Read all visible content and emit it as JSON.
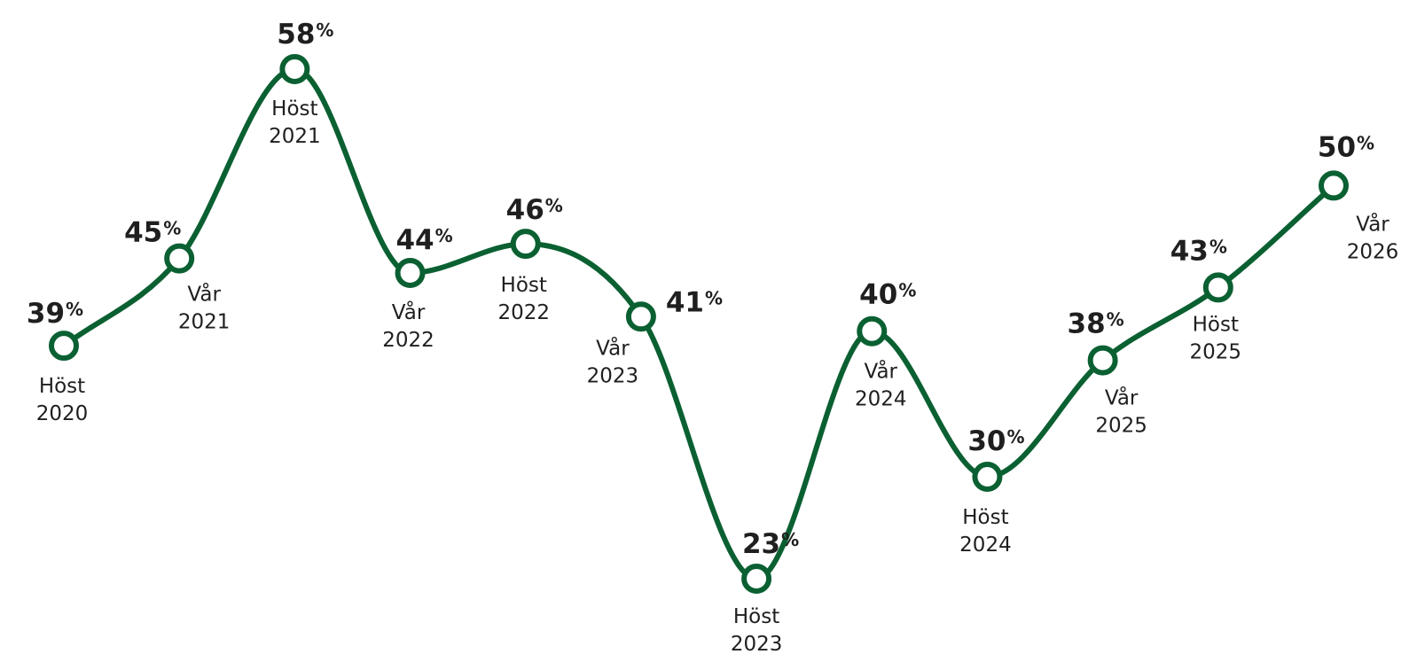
{
  "chart_data": {
    "type": "line",
    "title": "",
    "xlabel": "",
    "ylabel": "",
    "ylim": [
      20,
      60
    ],
    "grid": false,
    "legend": "none",
    "smooth": true,
    "color": "#0b6032",
    "unit": "%",
    "categories": [
      "Höst 2020",
      "Vår 2021",
      "Höst 2021",
      "Vår 2022",
      "Höst 2022",
      "Vår 2023",
      "Höst 2023",
      "Vår 2024",
      "Höst 2024",
      "Vår 2025",
      "Höst 2025",
      "Vår 2026"
    ],
    "series": [
      {
        "values": [
          39,
          45,
          58,
          44,
          46,
          41,
          23,
          40,
          30,
          38,
          43,
          50
        ]
      }
    ]
  }
}
